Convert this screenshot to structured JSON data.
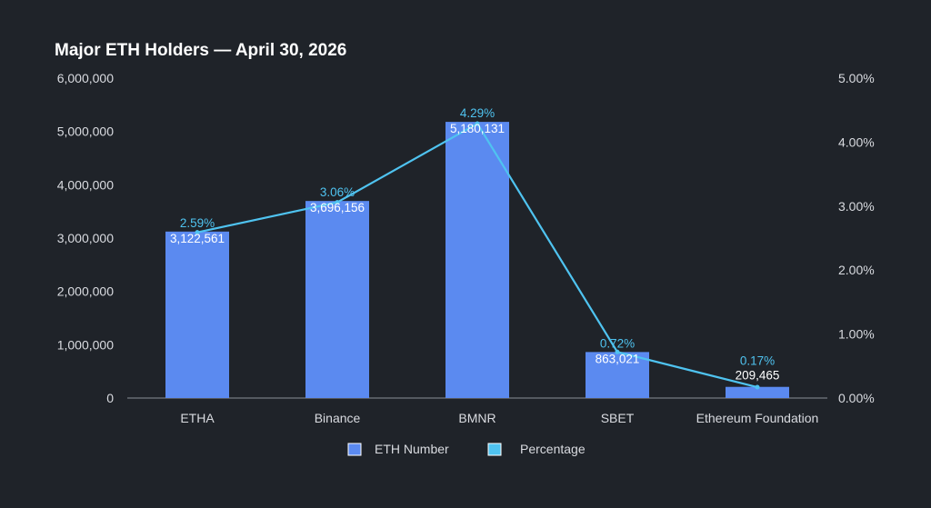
{
  "chart_data": {
    "type": "bar",
    "title": "Major ETH Holders — April 30, 2026",
    "categories": [
      "ETHA",
      "Binance",
      "BMNR",
      "SBET",
      "Ethereum Foundation"
    ],
    "series": [
      {
        "name": "ETH Number",
        "type": "bar",
        "axis": "left",
        "values": [
          3122561,
          3696156,
          5180131,
          863021,
          209465
        ],
        "labels": [
          "3,122,561",
          "3,696,156",
          "5,180,131",
          "863,021",
          "209,465"
        ],
        "color": "#5b8af0"
      },
      {
        "name": "Percentage",
        "type": "line",
        "axis": "right",
        "values": [
          2.59,
          3.06,
          4.29,
          0.72,
          0.17
        ],
        "labels": [
          "2.59%",
          "3.06%",
          "4.29%",
          "0.72%",
          "0.17%"
        ],
        "color": "#4fc3f0"
      }
    ],
    "y_left": {
      "min": 0,
      "max": 6000000,
      "ticks": [
        0,
        1000000,
        2000000,
        3000000,
        4000000,
        5000000,
        6000000
      ],
      "tick_labels": [
        "0",
        "1,000,000",
        "2,000,000",
        "3,000,000",
        "4,000,000",
        "5,000,000",
        "6,000,000"
      ]
    },
    "y_right": {
      "min": 0,
      "max": 5,
      "ticks": [
        0,
        1,
        2,
        3,
        4,
        5
      ],
      "tick_labels": [
        "0.00%",
        "1.00%",
        "2.00%",
        "3.00%",
        "4.00%",
        "5.00%"
      ]
    },
    "grid": false,
    "legend": {
      "position": "bottom-center"
    },
    "colors": {
      "background": "#1f2329",
      "axis": "#8a8f98",
      "text": "#d9dbe0"
    }
  }
}
